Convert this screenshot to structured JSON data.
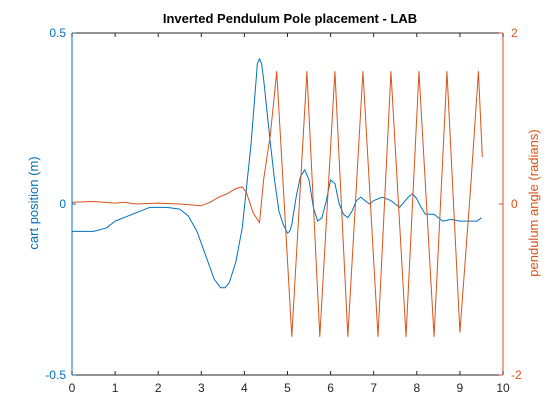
{
  "colors": {
    "left_axis": "#0072BD",
    "right_axis": "#D95319",
    "axes_box": "#262626",
    "background": "#ffffff"
  },
  "chart_data": {
    "type": "line",
    "title": "Inverted Pendulum Pole placement - LAB",
    "xlabel": "",
    "ylabel_left": "cart position (m)",
    "ylabel_right": "pendulum angle (radians)",
    "xlim": [
      0,
      10
    ],
    "ylim_left": [
      -0.5,
      0.5
    ],
    "ylim_right": [
      -2,
      2
    ],
    "x_ticks": [
      "0",
      "1",
      "2",
      "3",
      "4",
      "5",
      "6",
      "7",
      "8",
      "9",
      "10"
    ],
    "y_left_ticks": [
      "0.5",
      "0",
      "-0.5"
    ],
    "y_right_ticks": [
      "2",
      "0",
      "-2"
    ],
    "grid": false,
    "series": [
      {
        "axis": "left",
        "color": "#0072BD",
        "x": [
          0,
          0.5,
          0.8,
          1.0,
          1.2,
          1.4,
          1.6,
          1.8,
          2.2,
          2.5,
          2.7,
          2.9,
          3.1,
          3.3,
          3.45,
          3.55,
          3.65,
          3.8,
          3.95,
          4.05,
          4.15,
          4.22,
          4.27,
          4.3,
          4.35,
          4.4,
          4.45,
          4.5,
          4.6,
          4.7,
          4.8,
          4.9,
          5.0,
          5.05,
          5.1,
          5.2,
          5.3,
          5.4,
          5.5,
          5.6,
          5.7,
          5.8,
          5.9,
          6.0,
          6.1,
          6.2,
          6.3,
          6.4,
          6.5,
          6.6,
          6.7,
          6.8,
          6.9,
          7.0,
          7.2,
          7.4,
          7.6,
          7.8,
          7.9,
          8.0,
          8.1,
          8.2,
          8.4,
          8.6,
          8.8,
          9.0,
          9.2,
          9.4,
          9.5
        ],
        "y": [
          -0.08,
          -0.08,
          -0.07,
          -0.05,
          -0.04,
          -0.03,
          -0.02,
          -0.01,
          -0.01,
          -0.015,
          -0.035,
          -0.08,
          -0.15,
          -0.22,
          -0.245,
          -0.245,
          -0.23,
          -0.17,
          -0.07,
          0.05,
          0.17,
          0.28,
          0.36,
          0.41,
          0.425,
          0.41,
          0.36,
          0.3,
          0.18,
          0.07,
          -0.02,
          -0.06,
          -0.085,
          -0.08,
          -0.06,
          0.02,
          0.08,
          0.1,
          0.07,
          -0.01,
          -0.05,
          -0.04,
          0.01,
          0.07,
          0.06,
          0.0,
          -0.03,
          -0.04,
          -0.02,
          0.01,
          0.02,
          0.01,
          0.0,
          0.01,
          0.02,
          0.01,
          -0.01,
          0.02,
          0.03,
          0.015,
          -0.01,
          -0.03,
          -0.03,
          -0.05,
          -0.045,
          -0.05,
          -0.05,
          -0.05,
          -0.04
        ]
      },
      {
        "axis": "right",
        "color": "#D95319",
        "x": [
          0,
          0.5,
          1.0,
          1.2,
          1.5,
          2.0,
          2.5,
          3.0,
          3.2,
          3.4,
          3.6,
          3.8,
          3.95,
          4.05,
          4.2,
          4.35,
          4.45,
          4.6,
          4.75,
          5.1,
          5.45,
          5.75,
          6.1,
          6.4,
          6.75,
          7.1,
          7.4,
          7.75,
          8.05,
          8.4,
          8.7,
          9.0,
          9.25,
          9.43,
          9.52
        ],
        "y": [
          0.02,
          0.03,
          0.01,
          0.02,
          0.0,
          0.01,
          0.0,
          -0.02,
          0.02,
          0.08,
          0.12,
          0.18,
          0.2,
          0.13,
          -0.1,
          -0.22,
          0.3,
          0.8,
          1.55,
          -1.55,
          1.55,
          -1.55,
          1.55,
          -1.55,
          1.55,
          -1.55,
          1.55,
          -1.55,
          1.55,
          -1.55,
          1.55,
          -1.5,
          0.2,
          1.55,
          0.55
        ]
      }
    ]
  }
}
